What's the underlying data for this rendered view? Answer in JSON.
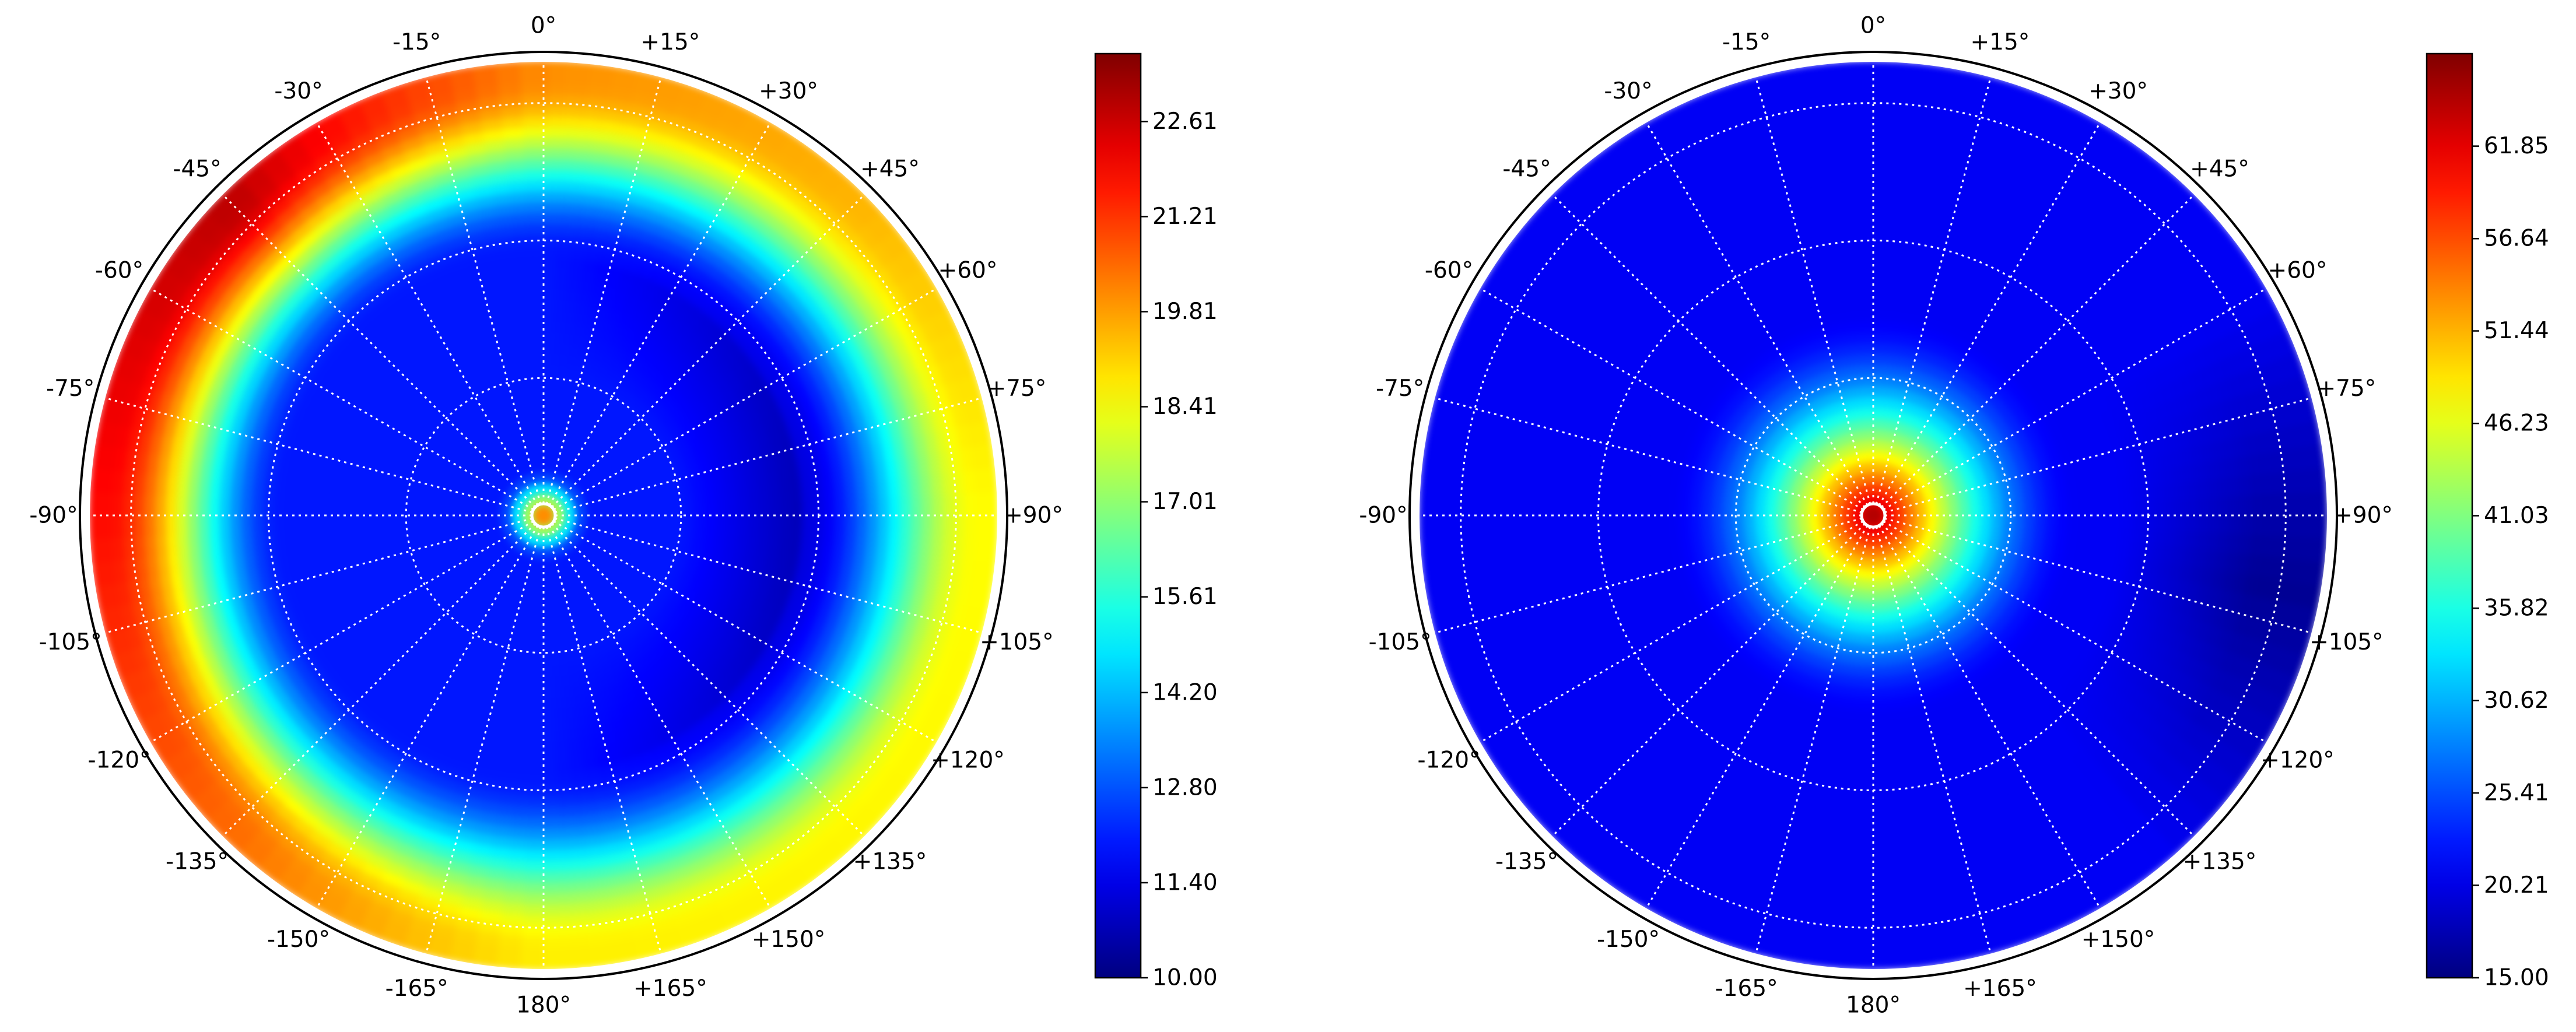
{
  "chart_data": [
    {
      "type": "heatmap",
      "projection": "polar",
      "angle_labels": [
        "0°",
        "+15°",
        "+30°",
        "+45°",
        "+60°",
        "+75°",
        "+90°",
        "+105°",
        "+120°",
        "+135°",
        "+150°",
        "+165°",
        "180°",
        "-165°",
        "-150°",
        "-135°",
        "-120°",
        "-105°",
        "-90°",
        "-75°",
        "-60°",
        "-45°",
        "-30°",
        "-15°"
      ],
      "radial_rings": 3,
      "colorbar": {
        "min": 10.0,
        "max": 23.61,
        "ticks": [
          "10.00",
          "11.40",
          "12.80",
          "14.20",
          "15.61",
          "17.01",
          "18.41",
          "19.81",
          "21.21",
          "22.61"
        ]
      },
      "colormap": "jet",
      "grid": true,
      "field": {
        "center_value": 22,
        "inner_value": 12,
        "outer_value_by_angle": [
          {
            "angle": 0,
            "value": 20
          },
          {
            "angle": 45,
            "value": 19.5
          },
          {
            "angle": 90,
            "value": 18.5
          },
          {
            "angle": 135,
            "value": 18.6
          },
          {
            "angle": 180,
            "value": 18.7
          },
          {
            "angle": 225,
            "value": 20.5
          },
          {
            "angle": 270,
            "value": 21.8
          },
          {
            "angle": 315,
            "value": 22.8
          }
        ],
        "right_side_minimum": 10.8
      }
    },
    {
      "type": "heatmap",
      "projection": "polar",
      "angle_labels": [
        "0°",
        "+15°",
        "+30°",
        "+45°",
        "+60°",
        "+75°",
        "+90°",
        "+105°",
        "+120°",
        "+135°",
        "+150°",
        "+165°",
        "180°",
        "-165°",
        "-150°",
        "-135°",
        "-120°",
        "-105°",
        "-90°",
        "-75°",
        "-60°",
        "-45°",
        "-30°",
        "-15°"
      ],
      "radial_rings": 3,
      "colorbar": {
        "min": 15.0,
        "max": 67.06,
        "ticks": [
          "15.00",
          "20.21",
          "25.41",
          "30.62",
          "35.82",
          "41.03",
          "46.23",
          "51.44",
          "56.64",
          "61.85"
        ]
      },
      "colormap": "jet",
      "grid": true,
      "field": {
        "center_value": 66,
        "outer_value": 21,
        "falloff_radius_fraction": 0.45,
        "low_region": {
          "angle": 100,
          "value": 16
        }
      }
    }
  ]
}
